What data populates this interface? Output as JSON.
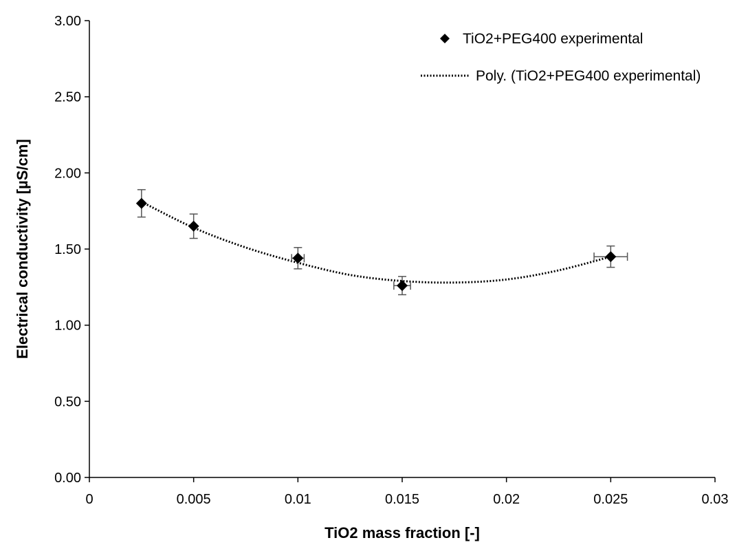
{
  "chart_data": {
    "type": "scatter",
    "title": "",
    "xlabel": "TiO2 mass fraction [-]",
    "ylabel": "Electrical conductivity [µS/cm]",
    "xlim": [
      0,
      0.03
    ],
    "ylim": [
      0,
      3
    ],
    "x_ticks": [
      "0",
      "0.005",
      "0.01",
      "0.015",
      "0.02",
      "0.025",
      "0.03"
    ],
    "y_ticks": [
      "0.00",
      "0.50",
      "1.00",
      "1.50",
      "2.00",
      "2.50",
      "3.00"
    ],
    "grid": false,
    "legend_position": "top-right",
    "series": [
      {
        "name": "TiO2+PEG400 experimental",
        "marker": "diamond",
        "color": "#000000",
        "points": [
          {
            "x": 0.0025,
            "y": 1.8,
            "y_err": 0.09,
            "x_err": 0.0
          },
          {
            "x": 0.005,
            "y": 1.65,
            "y_err": 0.08,
            "x_err": 0.0
          },
          {
            "x": 0.01,
            "y": 1.44,
            "y_err": 0.07,
            "x_err": 0.0003
          },
          {
            "x": 0.015,
            "y": 1.26,
            "y_err": 0.06,
            "x_err": 0.0004
          },
          {
            "x": 0.025,
            "y": 1.45,
            "y_err": 0.07,
            "x_err": 0.0008
          }
        ]
      }
    ],
    "trendline": {
      "name": "Poly. (TiO2+PEG400 experimental)",
      "style": "dotted",
      "color": "#000000",
      "x_range": [
        0.0025,
        0.025
      ],
      "points": [
        {
          "x": 0.0025,
          "y": 1.81
        },
        {
          "x": 0.005,
          "y": 1.64
        },
        {
          "x": 0.0075,
          "y": 1.51
        },
        {
          "x": 0.01,
          "y": 1.41
        },
        {
          "x": 0.0125,
          "y": 1.33
        },
        {
          "x": 0.015,
          "y": 1.29
        },
        {
          "x": 0.0175,
          "y": 1.28
        },
        {
          "x": 0.02,
          "y": 1.3
        },
        {
          "x": 0.0225,
          "y": 1.36
        },
        {
          "x": 0.025,
          "y": 1.45
        }
      ]
    }
  }
}
